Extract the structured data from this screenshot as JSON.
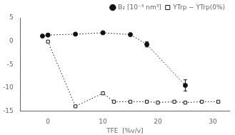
{
  "chart_data": {
    "type": "line",
    "xlabel": "TFE  [%v/v]",
    "xlim": [
      -5,
      33
    ],
    "ylim": [
      -15,
      5
    ],
    "xticks": [
      0,
      10,
      20,
      30
    ],
    "yticks": [
      -15,
      -10,
      -5,
      0,
      5
    ],
    "grid": false,
    "legend": "upper right",
    "series": [
      {
        "name": "B₂ [10⁻³ nm³]",
        "color": "#111111",
        "marker": "circle",
        "line_style": "dotted",
        "x": [
          -1,
          0,
          5,
          10,
          15,
          18,
          25
        ],
        "values": [
          1.1,
          1.3,
          1.5,
          1.8,
          1.4,
          -0.7,
          -9.5
        ],
        "errors": [
          0.0,
          0.0,
          0.0,
          0.3,
          0.25,
          0.55,
          1.2
        ]
      },
      {
        "name": "YTrp − YTrp(0%)",
        "color": "#111111",
        "marker": "open_square",
        "line_style": "dotted",
        "x": [
          0,
          5,
          10,
          12,
          15,
          18,
          20,
          23,
          25,
          28,
          31
        ],
        "values": [
          -0.1,
          -14.0,
          -11.2,
          -13.0,
          -13.0,
          -13.0,
          -13.2,
          -13.0,
          -13.2,
          -13.0,
          -13.0
        ]
      }
    ]
  }
}
